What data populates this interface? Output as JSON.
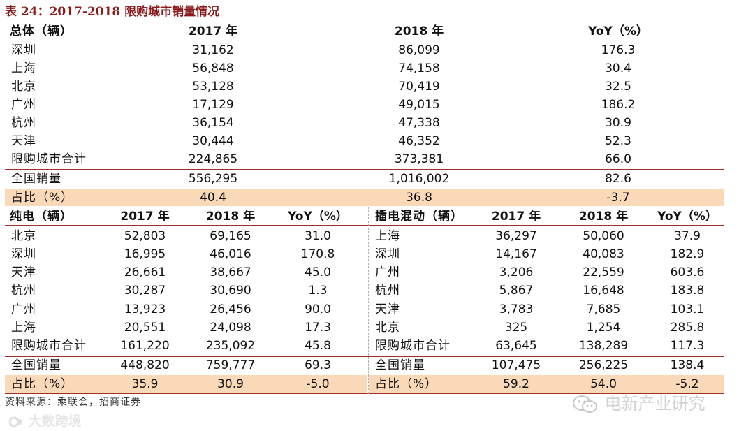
{
  "title": "表 24：2017-2018 限购城市销量情况",
  "top": {
    "headers": [
      "总体（辆）",
      "2017 年",
      "2018 年",
      "YoY（%）"
    ],
    "rows": [
      [
        "深圳",
        "31,162",
        "86,099",
        "176.3"
      ],
      [
        "上海",
        "56,848",
        "74,158",
        "30.4"
      ],
      [
        "北京",
        "53,128",
        "70,419",
        "32.5"
      ],
      [
        "广州",
        "17,129",
        "49,015",
        "186.2"
      ],
      [
        "杭州",
        "36,154",
        "47,338",
        "30.9"
      ],
      [
        "天津",
        "30,444",
        "46,352",
        "52.3"
      ],
      [
        "限购城市合计",
        "224,865",
        "373,381",
        "66.0"
      ],
      [
        "全国销量",
        "556,295",
        "1,016,002",
        "82.6"
      ],
      [
        "占比（%）",
        "40.4",
        "36.8",
        "-3.7"
      ]
    ]
  },
  "ev": {
    "headers": [
      "纯电（辆）",
      "2017 年",
      "2018 年",
      "YoY（%）"
    ],
    "rows": [
      [
        "北京",
        "52,803",
        "69,165",
        "31.0"
      ],
      [
        "深圳",
        "16,995",
        "46,016",
        "170.8"
      ],
      [
        "天津",
        "26,661",
        "38,667",
        "45.0"
      ],
      [
        "杭州",
        "30,287",
        "30,690",
        "1.3"
      ],
      [
        "广州",
        "13,923",
        "26,456",
        "90.0"
      ],
      [
        "上海",
        "20,551",
        "24,098",
        "17.3"
      ],
      [
        "限购城市合计",
        "161,220",
        "235,092",
        "45.8"
      ],
      [
        "全国销量",
        "448,820",
        "759,777",
        "69.3"
      ],
      [
        "占比（%）",
        "35.9",
        "30.9",
        "-5.0"
      ]
    ]
  },
  "phev": {
    "headers": [
      "插电混动（辆）",
      "2017 年",
      "2018 年",
      "YoY（%）"
    ],
    "rows": [
      [
        "上海",
        "36,297",
        "50,060",
        "37.9"
      ],
      [
        "深圳",
        "14,167",
        "40,083",
        "182.9"
      ],
      [
        "广州",
        "3,206",
        "22,559",
        "603.6"
      ],
      [
        "杭州",
        "5,867",
        "16,648",
        "183.8"
      ],
      [
        "天津",
        "3,783",
        "7,685",
        "103.1"
      ],
      [
        "北京",
        "325",
        "1,254",
        "285.8"
      ],
      [
        "限购城市合计",
        "63,645",
        "138,289",
        "117.3"
      ],
      [
        "全国销量",
        "107,475",
        "256,225",
        "138.4"
      ],
      [
        "占比（%）",
        "59.2",
        "54.0",
        "-5.2"
      ]
    ]
  },
  "footer": "资料来源：乘联会，招商证券",
  "watermark_left": "大数跨境",
  "watermark_right": "电新产业研究",
  "colors": {
    "title": "#8b1a1a",
    "rule": "#a0302a",
    "highlight": "#fad9b9"
  }
}
